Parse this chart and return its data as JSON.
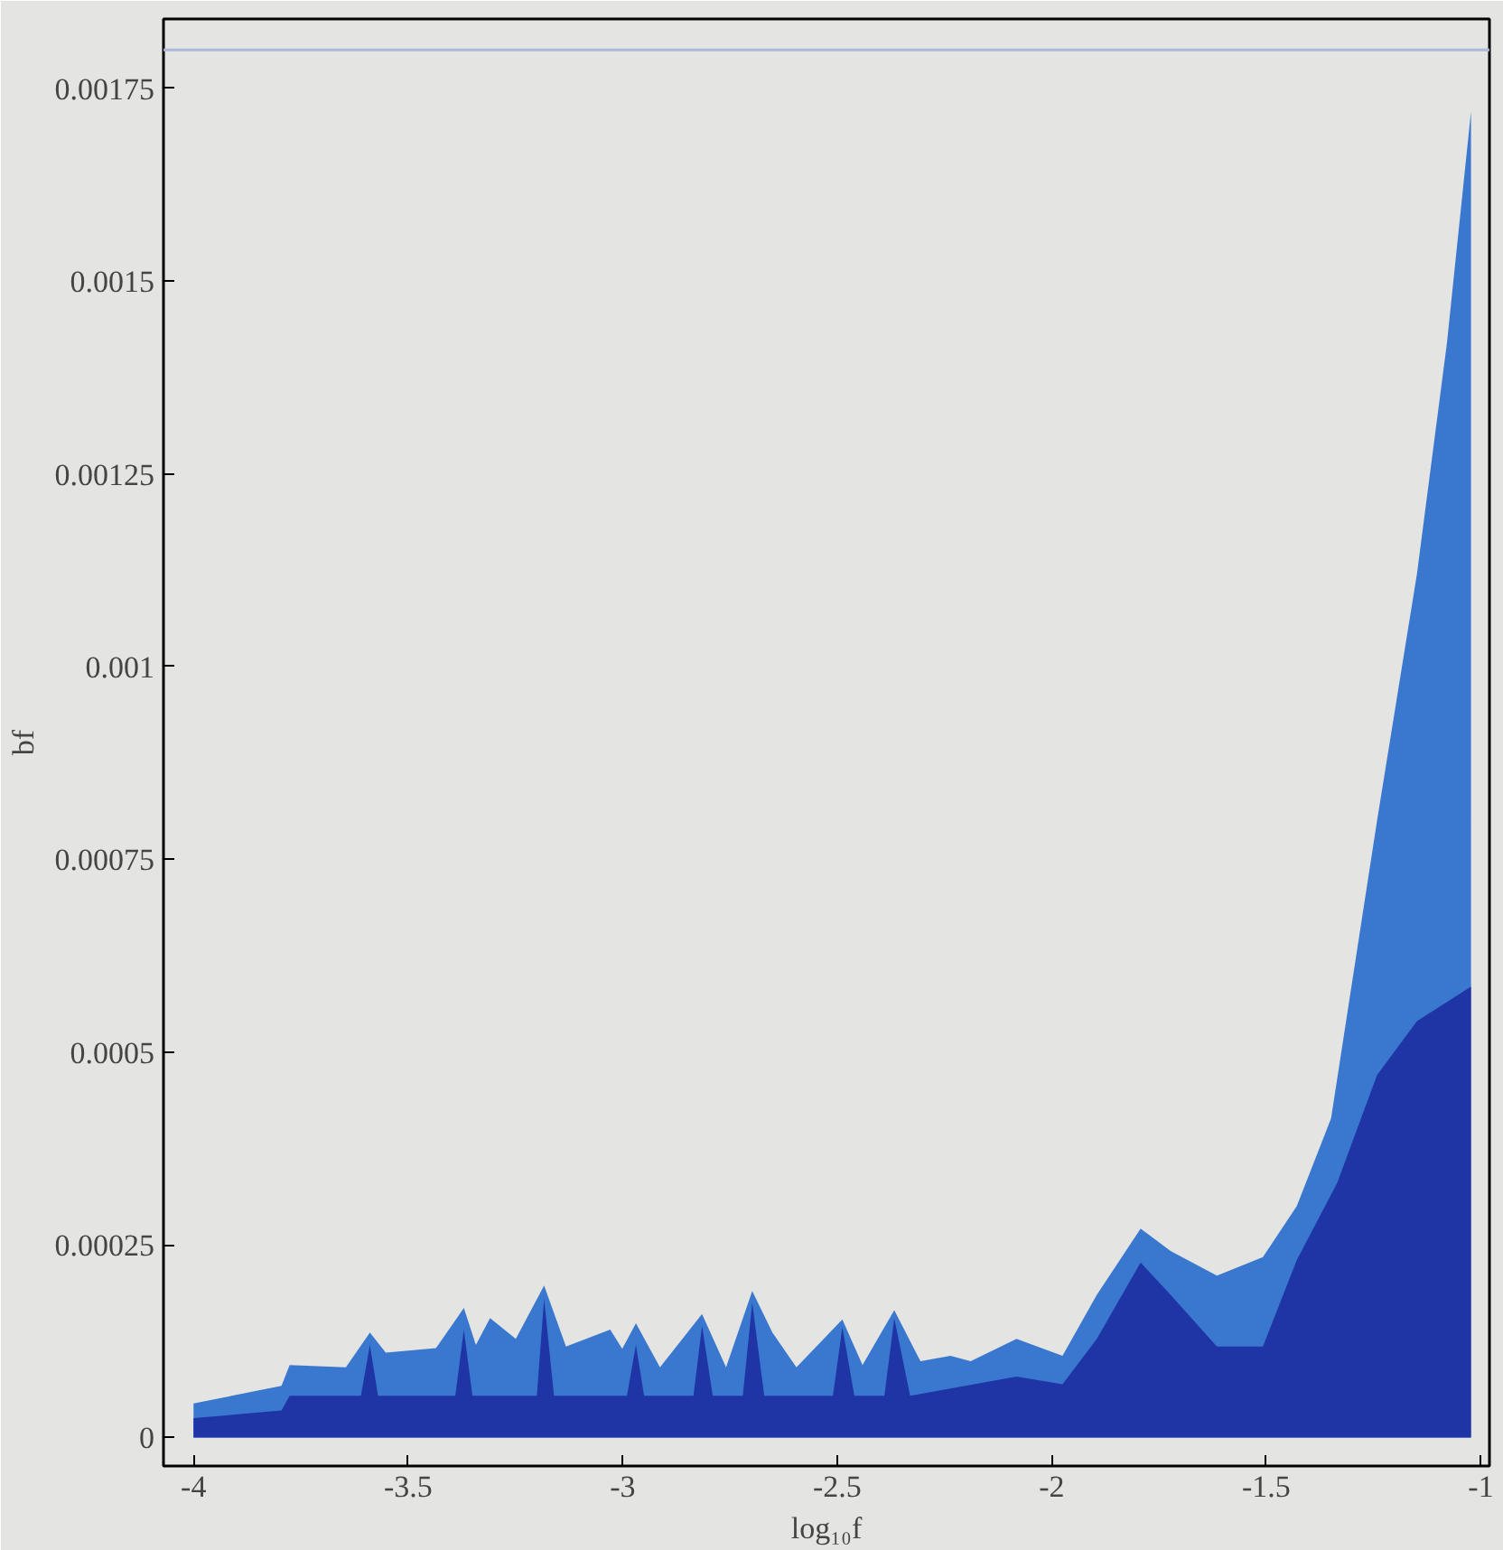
{
  "chart_data": {
    "type": "area",
    "xlabel": "log₁₀f",
    "ylabel": "bf",
    "xlim": [
      -4.07,
      -0.98
    ],
    "ylim": [
      -3.7e-05,
      0.00184
    ],
    "xticks": [
      -4,
      -3.5,
      -3,
      -2.5,
      -2,
      -1.5,
      -1
    ],
    "yticks": [
      0,
      0.00025,
      0.0005,
      0.00075,
      0.001,
      0.00125,
      0.0015,
      0.00175
    ],
    "grid": false,
    "ref_lines": [
      {
        "axis": "y",
        "value": 0.0018,
        "label": null,
        "color": "#a9b9d6"
      }
    ],
    "series": [
      {
        "color": "#3a78d0",
        "x": [
          -4.0,
          -3.795,
          -3.776,
          -3.645,
          -3.589,
          -3.552,
          -3.435,
          -3.37,
          -3.342,
          -3.309,
          -3.249,
          -3.183,
          -3.132,
          -3.029,
          -3.001,
          -2.969,
          -2.913,
          -2.815,
          -2.759,
          -2.698,
          -2.651,
          -2.595,
          -2.488,
          -2.441,
          -2.367,
          -2.306,
          -2.236,
          -2.189,
          -2.082,
          -1.975,
          -1.895,
          -1.793,
          -1.723,
          -1.615,
          -1.508,
          -1.429,
          -1.349,
          -1.242,
          -1.149,
          -1.079,
          -1.023
        ],
        "values": [
          4.4e-05,
          6.7e-05,
          9.4e-05,
          9.1e-05,
          0.000136,
          0.00011,
          0.000116,
          0.000168,
          0.00012,
          0.000155,
          0.000128,
          0.000197,
          0.000118,
          0.00014,
          0.000115,
          0.000148,
          9.1e-05,
          0.00016,
          9.1e-05,
          0.00019,
          0.000136,
          9.1e-05,
          0.000153,
          9.4e-05,
          0.000165,
          9.9e-05,
          0.000106,
          9.9e-05,
          0.000128,
          0.000106,
          0.000185,
          0.000271,
          0.000242,
          0.00021,
          0.000234,
          0.0003,
          0.000414,
          0.0008,
          0.00112,
          0.00142,
          0.00172
        ]
      },
      {
        "color": "#1f35a5",
        "x": [
          -4.0,
          -3.795,
          -3.776,
          -3.61,
          -3.589,
          -3.57,
          -3.39,
          -3.37,
          -3.35,
          -3.2,
          -3.183,
          -3.16,
          -2.99,
          -2.969,
          -2.95,
          -2.835,
          -2.815,
          -2.79,
          -2.72,
          -2.698,
          -2.67,
          -2.51,
          -2.488,
          -2.46,
          -2.39,
          -2.367,
          -2.33,
          -2.082,
          -1.975,
          -1.895,
          -1.793,
          -1.723,
          -1.615,
          -1.508,
          -1.429,
          -1.335,
          -1.242,
          -1.149,
          -1.023
        ],
        "values": [
          2.5e-05,
          3.5e-05,
          5.4e-05,
          5.4e-05,
          0.00012,
          5.4e-05,
          5.4e-05,
          0.00014,
          5.4e-05,
          5.4e-05,
          0.00018,
          5.4e-05,
          5.4e-05,
          0.00012,
          5.4e-05,
          5.4e-05,
          0.000145,
          5.4e-05,
          5.4e-05,
          0.000175,
          5.4e-05,
          5.4e-05,
          0.000143,
          5.4e-05,
          5.4e-05,
          0.000155,
          5.4e-05,
          7.9e-05,
          6.9e-05,
          0.000128,
          0.000227,
          0.000185,
          0.000118,
          0.000118,
          0.00023,
          0.00033,
          0.00047,
          0.00054,
          0.000585
        ]
      }
    ]
  }
}
